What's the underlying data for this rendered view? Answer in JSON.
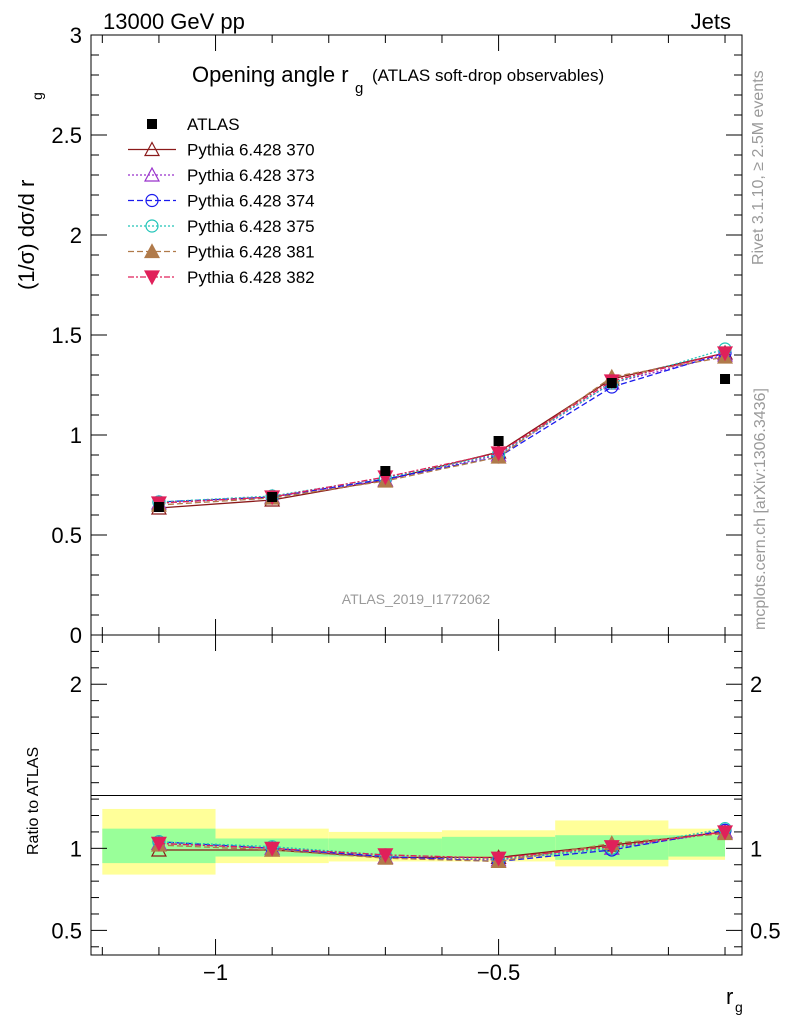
{
  "header": {
    "left": "13000 GeV pp",
    "right": "Jets"
  },
  "side": {
    "rivet": "Rivet 3.1.10, ≥ 2.5M events",
    "mcplots": "mcplots.cern.ch [arXiv:1306.3436]"
  },
  "watermark": "ATLAS_2019_I1772062",
  "chart_data": {
    "type": "line",
    "title_main": "Opening angle r",
    "title_sub": "g",
    "title_tail": "(ATLAS soft-drop observables)",
    "ylabel_main": "(1/σ) dσ/d r",
    "ylabel_sub": "g",
    "xlabel_main": "r",
    "xlabel_sub": "g",
    "ratio_ylabel": "Ratio to ATLAS",
    "xlim": [
      -1.22,
      -0.07
    ],
    "ylim": [
      0,
      3
    ],
    "ratio_ylim": [
      0.35,
      2.3
    ],
    "x_ticks": [
      -1,
      -0.5
    ],
    "x_tick_labels": [
      "−1",
      "−0.5"
    ],
    "y_ticks": [
      0,
      0.5,
      1,
      1.5,
      2,
      2.5,
      3
    ],
    "y_tick_labels": [
      "0",
      "0.5",
      "1",
      "1.5",
      "2",
      "2.5",
      "3"
    ],
    "ratio_ticks": [
      0.5,
      1,
      2
    ],
    "ratio_tick_labels": [
      "0.5",
      "1",
      "2"
    ],
    "x": [
      -1.1,
      -0.9,
      -0.7,
      -0.5,
      -0.3,
      -0.1
    ],
    "bins": [
      [
        -1.2,
        -1.0
      ],
      [
        -1.0,
        -0.8
      ],
      [
        -0.8,
        -0.6
      ],
      [
        -0.6,
        -0.4
      ],
      [
        -0.4,
        -0.2
      ],
      [
        -0.2,
        -0.1
      ]
    ],
    "atlas": [
      0.64,
      0.69,
      0.82,
      0.97,
      1.26,
      1.28
    ],
    "band_inner": [
      [
        0.91,
        1.12
      ],
      [
        0.95,
        1.06
      ],
      [
        0.95,
        1.06
      ],
      [
        0.95,
        1.07
      ],
      [
        0.93,
        1.08
      ],
      [
        0.95,
        1.08
      ]
    ],
    "band_outer": [
      [
        0.84,
        1.24
      ],
      [
        0.91,
        1.12
      ],
      [
        0.92,
        1.1
      ],
      [
        0.92,
        1.11
      ],
      [
        0.89,
        1.17
      ],
      [
        0.93,
        1.12
      ]
    ],
    "series": [
      {
        "name": "Pythia 6.428 370",
        "color": "#8b1a1a",
        "dash": "",
        "marker": "tri-open",
        "values": [
          0.635,
          0.675,
          0.775,
          0.915,
          1.28,
          1.41
        ],
        "ratio": [
          0.99,
          0.99,
          0.945,
          0.945,
          1.02,
          1.1
        ]
      },
      {
        "name": "Pythia 6.428 373",
        "color": "#9932cc",
        "dash": "2,2",
        "marker": "tri-open",
        "values": [
          0.66,
          0.69,
          0.775,
          0.9,
          1.26,
          1.4
        ],
        "ratio": [
          1.03,
          1.0,
          0.945,
          0.93,
          1.0,
          1.1
        ]
      },
      {
        "name": "Pythia 6.428 374",
        "color": "#1a1aee",
        "dash": "6,3",
        "marker": "circle-open",
        "values": [
          0.665,
          0.69,
          0.78,
          0.89,
          1.24,
          1.41
        ],
        "ratio": [
          1.04,
          1.0,
          0.95,
          0.92,
          0.99,
          1.11
        ]
      },
      {
        "name": "Pythia 6.428 375",
        "color": "#20c4b8",
        "dash": "2,2",
        "marker": "circle-open",
        "values": [
          0.665,
          0.695,
          0.785,
          0.905,
          1.26,
          1.43
        ],
        "ratio": [
          1.04,
          1.01,
          0.96,
          0.935,
          1.0,
          1.12
        ]
      },
      {
        "name": "Pythia 6.428 381",
        "color": "#b07a4a",
        "dash": "6,3",
        "marker": "tri-filled",
        "values": [
          0.65,
          0.685,
          0.77,
          0.89,
          1.29,
          1.39
        ],
        "ratio": [
          1.02,
          0.99,
          0.94,
          0.92,
          1.03,
          1.09
        ]
      },
      {
        "name": "Pythia 6.428 382",
        "color": "#e0205a",
        "dash": "6,2,2,2",
        "marker": "tridown-filled",
        "values": [
          0.66,
          0.69,
          0.79,
          0.91,
          1.27,
          1.41
        ],
        "ratio": [
          1.03,
          1.0,
          0.96,
          0.94,
          1.01,
          1.1
        ]
      }
    ],
    "data_legend": "ATLAS",
    "legend_placement": "top-left",
    "grid": false
  }
}
